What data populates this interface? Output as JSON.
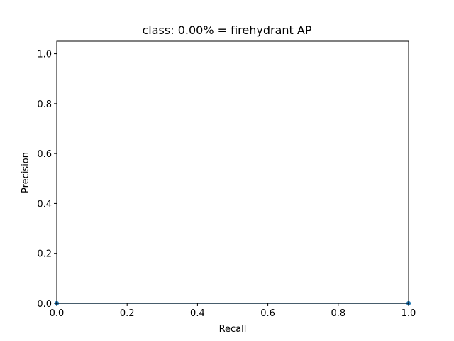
{
  "chart_data": {
    "type": "area",
    "title": "class: 0.00% = firehydrant AP",
    "xlabel": "Recall",
    "ylabel": "Precision",
    "xlim": [
      0.0,
      1.0
    ],
    "ylim": [
      0.0,
      1.05
    ],
    "xticks": [
      "0.0",
      "0.2",
      "0.4",
      "0.6",
      "0.8",
      "1.0"
    ],
    "yticks": [
      "0.0",
      "0.2",
      "0.4",
      "0.6",
      "0.8",
      "1.0"
    ],
    "grid": false,
    "legend": "none",
    "series": [
      {
        "x": [
          0.0,
          0.0,
          1.0,
          1.0
        ],
        "y": [
          0.0,
          0.0,
          0.0,
          0.0
        ]
      }
    ],
    "colors": {
      "line": "#1f77b4",
      "fill": "#1f77b4",
      "axes": "#000000",
      "background": "#ffffff"
    }
  }
}
